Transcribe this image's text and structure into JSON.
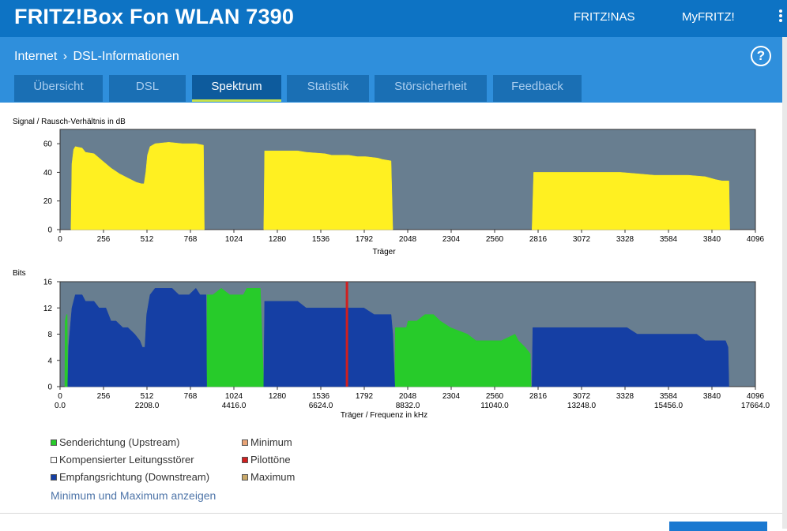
{
  "header": {
    "title": "FRITZ!Box Fon WLAN 7390",
    "links": [
      "FRITZ!NAS",
      "MyFRITZ!"
    ]
  },
  "breadcrumb": {
    "section": "Internet",
    "separator": "›",
    "page": "DSL-Informationen"
  },
  "tabs": [
    {
      "label": "Übersicht",
      "active": false
    },
    {
      "label": "DSL",
      "active": false
    },
    {
      "label": "Spektrum",
      "active": true
    },
    {
      "label": "Statistik",
      "active": false
    },
    {
      "label": "Störsicherheit",
      "active": false
    },
    {
      "label": "Feedback",
      "active": false
    }
  ],
  "help_label": "?",
  "colors": {
    "topbar": "#0d73c4",
    "subbar": "#2f8fdc",
    "plot_bg": "#687e90",
    "snr": "#fff021",
    "upstream": "#27cb2a",
    "downstream": "#153fa4",
    "pilot": "#d01f1f"
  },
  "chart_data": [
    {
      "type": "area",
      "ylabel": "Signal / Rausch-Verhältnis in dB",
      "xlabel": "Träger",
      "xlim": [
        0,
        4096
      ],
      "ylim": [
        0,
        70
      ],
      "yticks": [
        0,
        20,
        40,
        60
      ],
      "xticks": [
        "0",
        "256",
        "512",
        "768",
        "1024",
        "1280",
        "1536",
        "1792",
        "2048",
        "2304",
        "2560",
        "2816",
        "3072",
        "3328",
        "3584",
        "3840",
        "4096"
      ],
      "series": [
        {
          "color_key": "snr",
          "segments": [
            [
              [
                64,
                0
              ],
              [
                70,
                46
              ],
              [
                80,
                56
              ],
              [
                90,
                58
              ],
              [
                130,
                57
              ],
              [
                150,
                54
              ],
              [
                200,
                53
              ],
              [
                250,
                48
              ],
              [
                300,
                43
              ],
              [
                350,
                39
              ],
              [
                400,
                36
              ],
              [
                450,
                33
              ],
              [
                480,
                32
              ],
              [
                495,
                32
              ],
              [
                505,
                40
              ],
              [
                515,
                52
              ],
              [
                530,
                58
              ],
              [
                560,
                60
              ],
              [
                640,
                61
              ],
              [
                720,
                60
              ],
              [
                800,
                60
              ],
              [
                845,
                59
              ],
              [
                850,
                0
              ]
            ],
            [
              [
                1200,
                0
              ],
              [
                1205,
                55
              ],
              [
                1300,
                55
              ],
              [
                1400,
                55
              ],
              [
                1450,
                54
              ],
              [
                1560,
                53
              ],
              [
                1600,
                52
              ],
              [
                1700,
                52
              ],
              [
                1750,
                51
              ],
              [
                1800,
                51
              ],
              [
                1870,
                50
              ],
              [
                1900,
                49
              ],
              [
                1950,
                48
              ],
              [
                1960,
                0
              ]
            ],
            [
              [
                2780,
                0
              ],
              [
                2790,
                40
              ],
              [
                3000,
                40
              ],
              [
                3100,
                40
              ],
              [
                3200,
                40
              ],
              [
                3300,
                40
              ],
              [
                3400,
                39
              ],
              [
                3500,
                38
              ],
              [
                3600,
                38
              ],
              [
                3700,
                38
              ],
              [
                3800,
                37
              ],
              [
                3860,
                35
              ],
              [
                3900,
                34
              ],
              [
                3940,
                34
              ],
              [
                3945,
                0
              ]
            ]
          ]
        }
      ]
    },
    {
      "type": "area",
      "ylabel": "Bits",
      "xlabel": "Träger / Frequenz in kHz",
      "xlim": [
        0,
        4096
      ],
      "ylim": [
        0,
        16
      ],
      "yticks": [
        0,
        4,
        8,
        12,
        16
      ],
      "xticks": [
        "0",
        "256",
        "512",
        "768",
        "1024",
        "1280",
        "1536",
        "1792",
        "2048",
        "2304",
        "2560",
        "2816",
        "3072",
        "3328",
        "3584",
        "3840",
        "4096"
      ],
      "x2ticks": [
        "0.0",
        "2208.0",
        "4416.0",
        "6624.0",
        "8832.0",
        "11040.0",
        "13248.0",
        "15456.0",
        "17664.0"
      ],
      "pilot_x": 1690,
      "series": [
        {
          "name": "Senderichtung (Upstream)",
          "color_key": "upstream",
          "segments": [
            [
              [
                28,
                0
              ],
              [
                30,
                10
              ],
              [
                38,
                11
              ],
              [
                42,
                11
              ],
              [
                45,
                0
              ]
            ],
            [
              [
                864,
                0
              ],
              [
                866,
                14
              ],
              [
                900,
                14
              ],
              [
                950,
                15
              ],
              [
                1000,
                14
              ],
              [
                1080,
                14
              ],
              [
                1100,
                15
              ],
              [
                1180,
                15
              ],
              [
                1200,
                0
              ]
            ],
            [
              [
                1972,
                0
              ],
              [
                1975,
                9
              ],
              [
                2040,
                9
              ],
              [
                2050,
                10
              ],
              [
                2100,
                10
              ],
              [
                2150,
                11
              ],
              [
                2200,
                11
              ],
              [
                2240,
                10
              ],
              [
                2300,
                9
              ],
              [
                2400,
                8
              ],
              [
                2450,
                7
              ],
              [
                2600,
                7
              ],
              [
                2680,
                8
              ],
              [
                2700,
                7
              ],
              [
                2740,
                6
              ],
              [
                2770,
                5
              ],
              [
                2775,
                0
              ]
            ]
          ]
        },
        {
          "name": "Empfangsrichtung (Downstream)",
          "color_key": "downstream",
          "segments": [
            [
              [
                45,
                0
              ],
              [
                50,
                6
              ],
              [
                70,
                12
              ],
              [
                90,
                14
              ],
              [
                130,
                14
              ],
              [
                150,
                13
              ],
              [
                200,
                13
              ],
              [
                230,
                12
              ],
              [
                270,
                12
              ],
              [
                300,
                10
              ],
              [
                330,
                10
              ],
              [
                370,
                9
              ],
              [
                400,
                9
              ],
              [
                440,
                8
              ],
              [
                470,
                7
              ],
              [
                485,
                6
              ],
              [
                500,
                6
              ],
              [
                510,
                11
              ],
              [
                530,
                14
              ],
              [
                560,
                15
              ],
              [
                660,
                15
              ],
              [
                700,
                14
              ],
              [
                760,
                14
              ],
              [
                800,
                15
              ],
              [
                825,
                14
              ],
              [
                860,
                14
              ],
              [
                864,
                0
              ]
            ],
            [
              [
                1200,
                0
              ],
              [
                1205,
                13
              ],
              [
                1400,
                13
              ],
              [
                1450,
                12
              ],
              [
                1600,
                12
              ],
              [
                1790,
                12
              ],
              [
                1850,
                11
              ],
              [
                1900,
                11
              ],
              [
                1950,
                11
              ],
              [
                1960,
                8
              ],
              [
                1972,
                0
              ]
            ],
            [
              [
                2780,
                0
              ],
              [
                2785,
                9
              ],
              [
                3050,
                9
              ],
              [
                3100,
                9
              ],
              [
                3300,
                9
              ],
              [
                3340,
                9
              ],
              [
                3400,
                8
              ],
              [
                3500,
                8
              ],
              [
                3600,
                8
              ],
              [
                3750,
                8
              ],
              [
                3800,
                7
              ],
              [
                3880,
                7
              ],
              [
                3920,
                7
              ],
              [
                3935,
                6
              ],
              [
                3940,
                0
              ]
            ]
          ]
        }
      ]
    }
  ],
  "legend": [
    {
      "label": "Senderichtung (Upstream)",
      "color": "#27cb2a"
    },
    {
      "label": "Minimum",
      "color": "#e8a477"
    },
    {
      "label": "Kompensierter Leitungsstörer",
      "color": "#ffffff"
    },
    {
      "label": "Pilottöne",
      "color": "#d01f1f"
    },
    {
      "label": "Empfangsrichtung (Downstream)",
      "color": "#153fa4"
    },
    {
      "label": "Maximum",
      "color": "#c9a96a"
    }
  ],
  "toggle_link": "Minimum und Maximum anzeigen"
}
